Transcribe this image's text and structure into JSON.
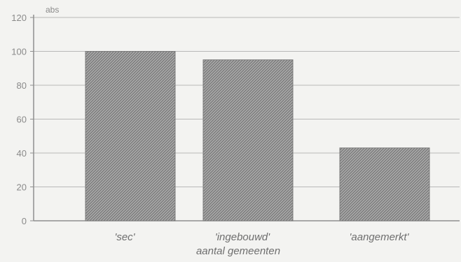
{
  "chart_data": {
    "type": "bar",
    "categories": [
      "'sec'",
      "'ingebouwd'",
      "'aangemerkt'"
    ],
    "values": [
      100,
      95,
      43
    ],
    "title": "",
    "xlabel": "aantal gemeenten",
    "ylabel": "abs",
    "ylim": [
      0,
      120
    ],
    "yticks": [
      0,
      20,
      40,
      60,
      80,
      100,
      120
    ],
    "grid": true,
    "legend": "none",
    "colors": {
      "background": "#f3f3f1",
      "axis": "#8f8f8f",
      "grid": "#b8b8b8",
      "bar_fill": "#9d9d9d",
      "bar_hatch": "#6f6f6f",
      "text": "#8a8a8a",
      "category_text": "#6e6e6e"
    }
  }
}
